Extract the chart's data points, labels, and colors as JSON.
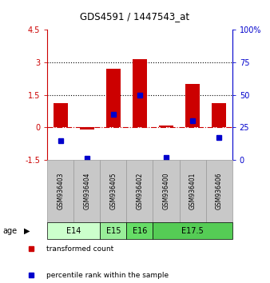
{
  "title": "GDS4591 / 1447543_at",
  "samples": [
    "GSM936403",
    "GSM936404",
    "GSM936405",
    "GSM936402",
    "GSM936400",
    "GSM936401",
    "GSM936406"
  ],
  "red_values": [
    1.1,
    -0.1,
    2.7,
    3.15,
    0.07,
    2.0,
    1.1
  ],
  "blue_values_pct": [
    15,
    1,
    35,
    50,
    2,
    30,
    17
  ],
  "ylim_left": [
    -1.5,
    4.5
  ],
  "ylim_right": [
    0,
    100
  ],
  "yticks_left": [
    -1.5,
    0,
    1.5,
    3,
    4.5
  ],
  "yticks_right": [
    0,
    25,
    50,
    75,
    100
  ],
  "ytick_labels_left": [
    "-1.5",
    "0",
    "1.5",
    "3",
    "4.5"
  ],
  "ytick_labels_right": [
    "0",
    "25",
    "50",
    "75",
    "100%"
  ],
  "hlines": [
    1.5,
    3.0
  ],
  "red_color": "#cc0000",
  "blue_color": "#0000cc",
  "dashed_zero_color": "#cc0000",
  "age_groups": [
    {
      "label": "E14",
      "start": 0,
      "end": 2,
      "color": "#ccffcc"
    },
    {
      "label": "E15",
      "start": 2,
      "end": 3,
      "color": "#99ee99"
    },
    {
      "label": "E16",
      "start": 3,
      "end": 4,
      "color": "#66dd66"
    },
    {
      "label": "E17.5",
      "start": 4,
      "end": 7,
      "color": "#55cc55"
    }
  ],
  "legend_items": [
    {
      "label": "transformed count",
      "color": "#cc0000"
    },
    {
      "label": "percentile rank within the sample",
      "color": "#0000cc"
    }
  ],
  "bar_width": 0.55,
  "sample_bg_color": "#c8c8c8",
  "sample_border_color": "#999999"
}
